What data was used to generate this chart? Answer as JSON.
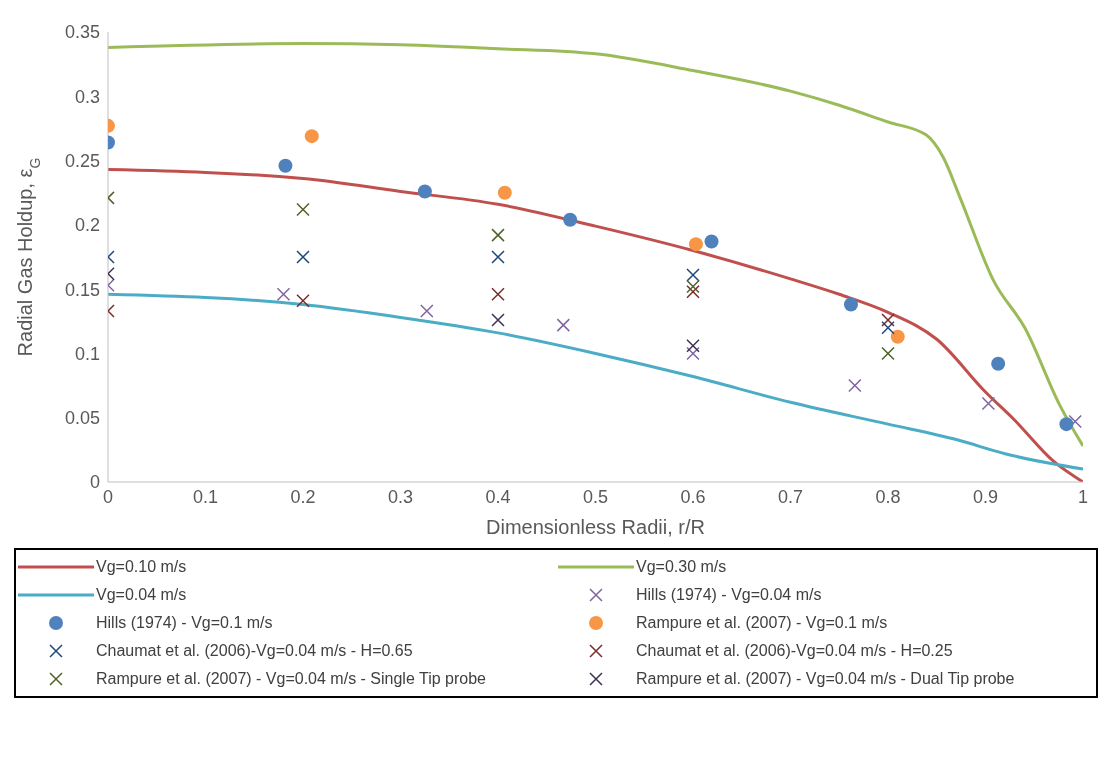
{
  "chart_data": {
    "type": "scatter",
    "xlabel": "Dimensionless Radii, r/R",
    "ylabel": "Radial Gas Holdup, ε$_{G}$",
    "xlim": [
      0,
      1
    ],
    "xticks": [
      0,
      0.1,
      0.2,
      0.3,
      0.4,
      0.5,
      0.6,
      0.7,
      0.8,
      0.9,
      1
    ],
    "ylim": [
      0,
      0.35
    ],
    "yticks": [
      0,
      0.05,
      0.1,
      0.15,
      0.2,
      0.25,
      0.3,
      0.35
    ],
    "grid": false,
    "legend": "bottom",
    "series": [
      {
        "name": "Vg=0.10 m/s",
        "type": "line",
        "marker": "none",
        "color": "#c0504d",
        "x": [
          0,
          0.2,
          0.3,
          0.4,
          0.5,
          0.6,
          0.7,
          0.75,
          0.8,
          0.85,
          0.9,
          0.93,
          0.97,
          1
        ],
        "values": [
          0.243,
          0.236,
          0.226,
          0.216,
          0.199,
          0.18,
          0.158,
          0.146,
          0.132,
          0.111,
          0.07,
          0.048,
          0.016,
          0
        ]
      },
      {
        "name": "Vg=0.30 m/s",
        "type": "line",
        "marker": "none",
        "color": "#9bbb59",
        "x": [
          0,
          0.2,
          0.3,
          0.4,
          0.5,
          0.6,
          0.7,
          0.75,
          0.8,
          0.839,
          0.857,
          0.874,
          0.908,
          0.941,
          0.976,
          1
        ],
        "values": [
          0.338,
          0.341,
          0.34,
          0.337,
          0.333,
          0.32,
          0.304,
          0.293,
          0.28,
          0.27,
          0.252,
          0.221,
          0.157,
          0.119,
          0.06,
          0.028
        ]
      },
      {
        "name": "Vg=0.04 m/s",
        "type": "line",
        "marker": "none",
        "color": "#4bacc6",
        "x": [
          0,
          0.2,
          0.3,
          0.4,
          0.5,
          0.6,
          0.7,
          0.8,
          0.87,
          0.92,
          1
        ],
        "values": [
          0.146,
          0.138,
          0.128,
          0.116,
          0.1,
          0.082,
          0.062,
          0.045,
          0.033,
          0.022,
          0.01
        ]
      },
      {
        "name": "Hills (1974) - Vg=0.04 m/s",
        "marker": "cross",
        "color": "#8064a2",
        "x": [
          0,
          0.18,
          0.327,
          0.467,
          0.6,
          0.766,
          0.903,
          0.992
        ],
        "values": [
          0.153,
          0.146,
          0.133,
          0.122,
          0.1,
          0.075,
          0.061,
          0.047
        ]
      },
      {
        "name": "Hills (1974) - Vg=0.1 m/s",
        "marker": "circle",
        "color": "#4f81bd",
        "x": [
          0,
          0.182,
          0.325,
          0.474,
          0.619,
          0.762,
          0.913,
          0.983
        ],
        "values": [
          0.264,
          0.246,
          0.226,
          0.204,
          0.187,
          0.138,
          0.092,
          0.045
        ]
      },
      {
        "name": "Rampure et al. (2007) - Vg=0.1 m/s",
        "marker": "circle",
        "color": "#f79646",
        "x": [
          0,
          0.209,
          0.407,
          0.603,
          0.81
        ],
        "values": [
          0.277,
          0.269,
          0.225,
          0.185,
          0.113
        ]
      },
      {
        "name": "Chaumat et al.  (2006)-Vg=0.04 m/s - H=0.65",
        "marker": "cross",
        "color": "#1f497d",
        "x": [
          0,
          0.2,
          0.4,
          0.6,
          0.8
        ],
        "values": [
          0.175,
          0.175,
          0.175,
          0.161,
          0.12
        ]
      },
      {
        "name": "Chaumat et al.  (2006)-Vg=0.04 m/s - H=0.25",
        "marker": "cross",
        "color": "#772c2a",
        "x": [
          0,
          0.2,
          0.4,
          0.6,
          0.8
        ],
        "values": [
          0.133,
          0.141,
          0.146,
          0.148,
          0.126
        ]
      },
      {
        "name": "Rampure et al. (2007) - Vg=0.04 m/s - Single Tip probe",
        "marker": "cross",
        "color": "#4f6228",
        "x": [
          0,
          0.2,
          0.4,
          0.6,
          0.8
        ],
        "values": [
          0.221,
          0.212,
          0.192,
          0.152,
          0.1
        ]
      },
      {
        "name": "Rampure et al. (2007) - Vg=0.04 m/s - Dual Tip probe",
        "marker": "cross",
        "color": "#3f3151",
        "x": [
          0,
          0.4,
          0.6
        ],
        "values": [
          0.162,
          0.126,
          0.106
        ]
      }
    ]
  }
}
